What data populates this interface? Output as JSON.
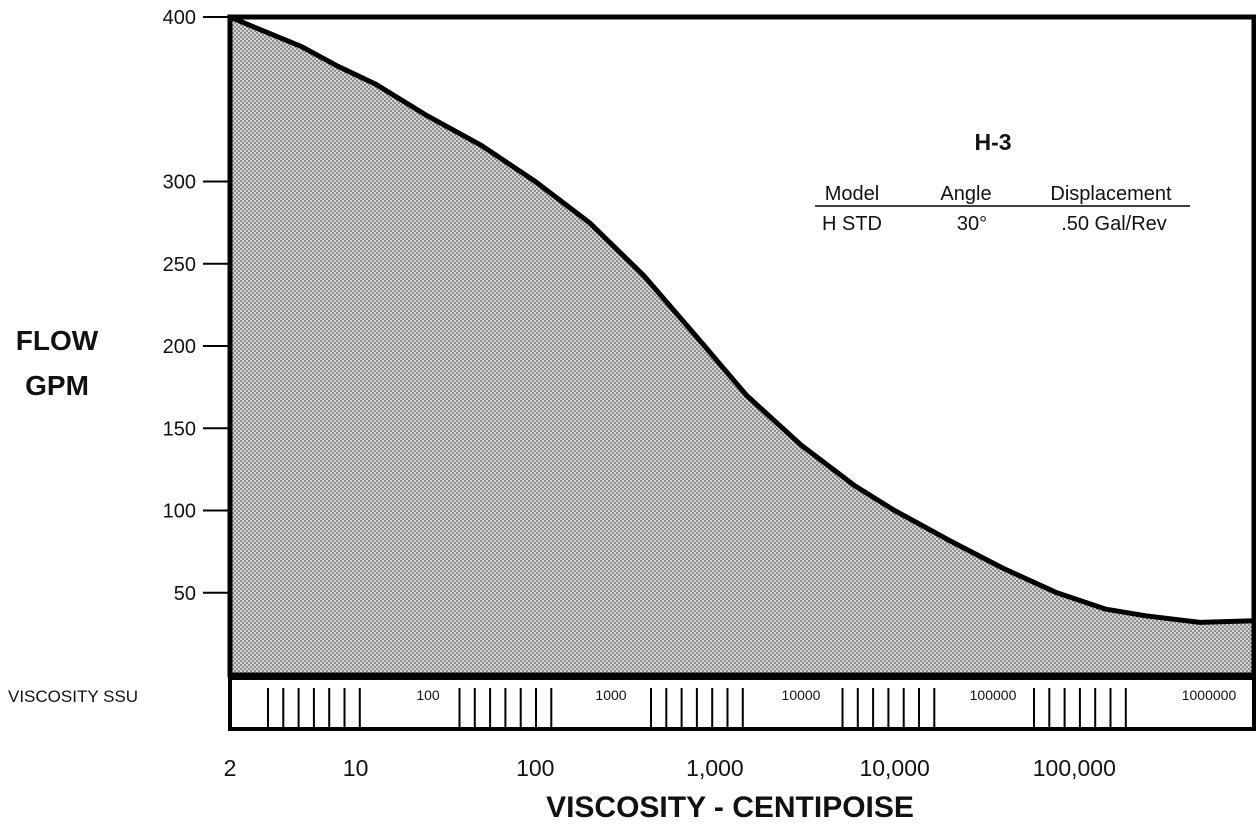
{
  "chart_data": {
    "type": "area",
    "title": "",
    "ylabel_lines": [
      "FLOW",
      "GPM"
    ],
    "xlabel": "VISCOSITY - CENTIPOISE",
    "x_scale": "log",
    "xlim": [
      2,
      1000000
    ],
    "ylim": [
      0,
      400
    ],
    "y_ticks": [
      50,
      100,
      150,
      200,
      250,
      300,
      400
    ],
    "x_ticks": [
      {
        "value": 2,
        "label": "2"
      },
      {
        "value": 10,
        "label": "10"
      },
      {
        "value": 100,
        "label": "100"
      },
      {
        "value": 1000,
        "label": "1,000"
      },
      {
        "value": 10000,
        "label": "10,000"
      },
      {
        "value": 100000,
        "label": "100,000"
      }
    ],
    "grid": false,
    "fill": "crosshatch gray",
    "series": [
      {
        "x": [
          2,
          3,
          5,
          8,
          13,
          25,
          50,
          100,
          200,
          400,
          800,
          1500,
          3000,
          6000,
          10000,
          20000,
          40000,
          80000,
          150000,
          250000,
          500000,
          1000000
        ],
        "y": [
          400,
          392,
          382,
          370,
          359,
          340,
          322,
          300,
          275,
          243,
          205,
          170,
          140,
          115,
          100,
          82,
          65,
          50,
          40,
          36,
          32,
          33
        ]
      }
    ],
    "secondary_scale": {
      "label": "VISCOSITY SSU",
      "tick_labels": [
        {
          "value": 100,
          "label": "100"
        },
        {
          "value": 1000,
          "label": "1000"
        },
        {
          "value": 10000,
          "label": "10000"
        },
        {
          "value": 100000,
          "label": "100000"
        },
        {
          "value": 1000000,
          "label": "1000000"
        }
      ]
    },
    "spec": {
      "title": "H-3",
      "headers": [
        "Model",
        "Angle",
        "Displacement"
      ],
      "values": [
        "H STD",
        "30°",
        ".50 Gal/Rev"
      ]
    }
  },
  "colors": {
    "frame": "#000000",
    "fill_light": "#cfcfcf",
    "fill_dark": "#8a8a8a",
    "text": "#111111"
  }
}
